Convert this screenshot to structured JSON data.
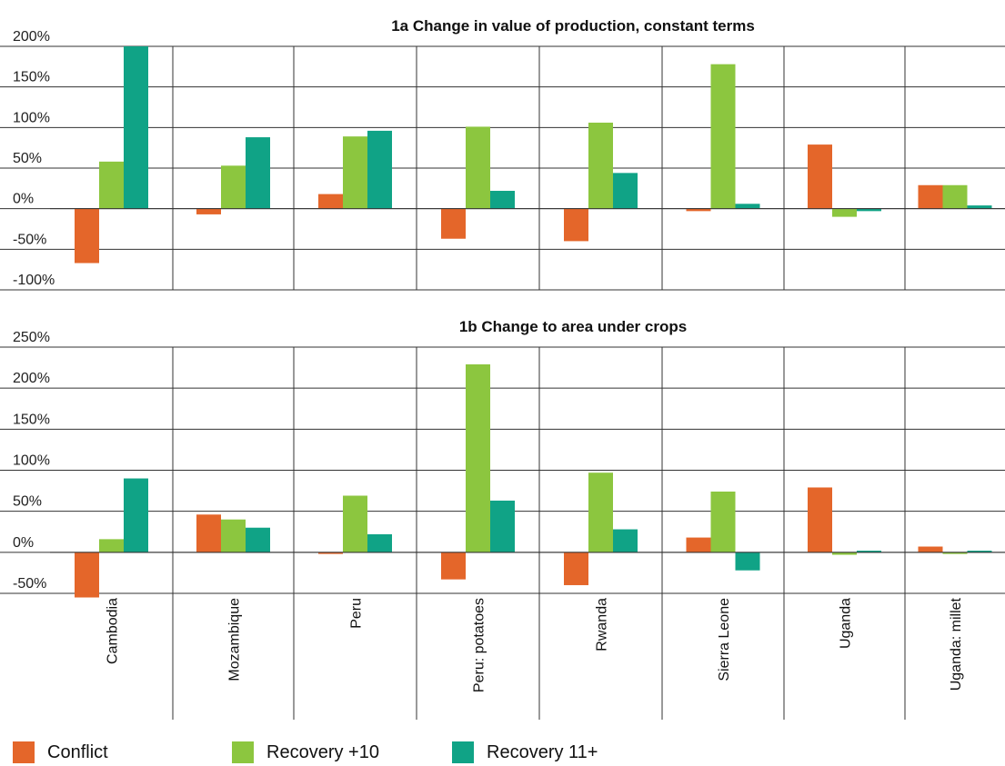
{
  "chart_data": [
    {
      "type": "bar",
      "title": "1a Change in value of production, constant terms",
      "categories": [
        "Cambodia",
        "Mozambique",
        "Peru",
        "Peru: potatoes",
        "Rwanda",
        "Sierra Leone",
        "Uganda",
        "Uganda: millet"
      ],
      "ylim": [
        -100,
        200
      ],
      "yticks": [
        "200%",
        "150%",
        "100%",
        "50%",
        "0%",
        "-50%",
        "-100%"
      ],
      "ytick_values": [
        200,
        150,
        100,
        50,
        0,
        -50,
        -100
      ],
      "grid": true,
      "series": [
        {
          "name": "Conflict",
          "color": "#e4662a",
          "values": [
            -67,
            -7,
            18,
            -37,
            -40,
            -3,
            79,
            29
          ]
        },
        {
          "name": "Recovery +10",
          "color": "#8cc63f",
          "values": [
            58,
            53,
            89,
            101,
            106,
            178,
            -10,
            29
          ]
        },
        {
          "name": "Recovery 11+",
          "color": "#10a386",
          "values": [
            200,
            88,
            96,
            22,
            44,
            6,
            -3,
            4
          ]
        }
      ]
    },
    {
      "type": "bar",
      "title": "1b Change to area under crops",
      "categories": [
        "Cambodia",
        "Mozambique",
        "Peru",
        "Peru: potatoes",
        "Rwanda",
        "Sierra Leone",
        "Uganda",
        "Uganda: millet"
      ],
      "ylim": [
        -50,
        250
      ],
      "yticks": [
        "250%",
        "200%",
        "150%",
        "100%",
        "50%",
        "0%",
        "-50%"
      ],
      "ytick_values": [
        250,
        200,
        150,
        100,
        50,
        0,
        -50
      ],
      "grid": true,
      "series": [
        {
          "name": "Conflict",
          "color": "#e4662a",
          "values": [
            -55,
            46,
            -2,
            -33,
            -40,
            18,
            79,
            7
          ]
        },
        {
          "name": "Recovery +10",
          "color": "#8cc63f",
          "values": [
            16,
            40,
            69,
            229,
            97,
            74,
            -3,
            -2
          ]
        },
        {
          "name": "Recovery 11+",
          "color": "#10a386",
          "values": [
            90,
            30,
            22,
            63,
            28,
            -22,
            2,
            2
          ]
        }
      ]
    }
  ],
  "legend": [
    {
      "label": "Conflict",
      "color": "#e4662a"
    },
    {
      "label": "Recovery +10",
      "color": "#8cc63f"
    },
    {
      "label": "Recovery 11+",
      "color": "#10a386"
    }
  ]
}
